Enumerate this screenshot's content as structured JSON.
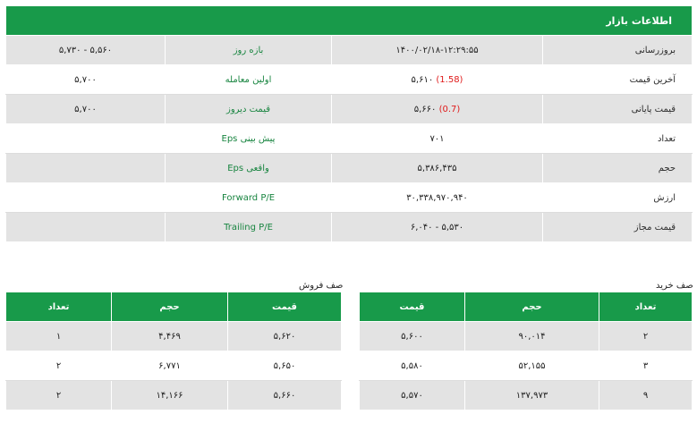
{
  "market": {
    "title": "اطلاعات بازار",
    "rows": [
      {
        "label": "بروزرسانی",
        "value": "۱۴۰۰/۰۲/۱۸-۱۲:۲۹:۵۵",
        "value_change": "",
        "label2": "بازه روز",
        "value2": "۵,۷۳۰ - ۵,۵۶۰"
      },
      {
        "label": "آخرین قیمت",
        "value": "۵,۶۱۰",
        "value_change": "(1.58)",
        "label2": "اولین معامله",
        "value2": "۵,۷۰۰"
      },
      {
        "label": "قیمت پایانی",
        "value": "۵,۶۶۰",
        "value_change": "(0.7)",
        "label2": "قیمت دیروز",
        "value2": "۵,۷۰۰"
      },
      {
        "label": "تعداد",
        "value": "۷۰۱",
        "value_change": "",
        "label2": "Eps پیش بینی",
        "value2": ""
      },
      {
        "label": "حجم",
        "value": "۵,۳۸۶,۴۳۵",
        "value_change": "",
        "label2": "Eps واقعی",
        "value2": ""
      },
      {
        "label": "ارزش",
        "value": "۳۰,۳۳۸,۹۷۰,۹۴۰",
        "value_change": "",
        "label2": "Forward P/E",
        "value2": ""
      },
      {
        "label": "قیمت مجاز",
        "value": "۶,۰۴۰ - ۵,۵۳۰",
        "value_change": "",
        "label2": "Trailing P/E",
        "value2": ""
      }
    ]
  },
  "sell": {
    "title": "صف فروش",
    "headers": {
      "count": "تعداد",
      "volume": "حجم",
      "price": "قیمت"
    },
    "rows": [
      {
        "count": "۱",
        "volume": "۴,۴۶۹",
        "price": "۵,۶۲۰"
      },
      {
        "count": "۲",
        "volume": "۶,۷۷۱",
        "price": "۵,۶۵۰"
      },
      {
        "count": "۲",
        "volume": "۱۴,۱۶۶",
        "price": "۵,۶۶۰"
      }
    ]
  },
  "buy": {
    "title": "صف خرید",
    "headers": {
      "price": "قیمت",
      "volume": "حجم",
      "count": "تعداد"
    },
    "rows": [
      {
        "price": "۵,۶۰۰",
        "volume": "۹۰,۰۱۴",
        "count": "۲"
      },
      {
        "price": "۵,۵۸۰",
        "volume": "۵۲,۱۵۵",
        "count": "۳"
      },
      {
        "price": "۵,۵۷۰",
        "volume": "۱۳۷,۹۷۳",
        "count": "۹"
      }
    ]
  },
  "colors": {
    "header_green": "#189a4a",
    "label_green": "#17843f",
    "change_red": "#e01b1b",
    "row_gray": "#e3e3e3"
  }
}
